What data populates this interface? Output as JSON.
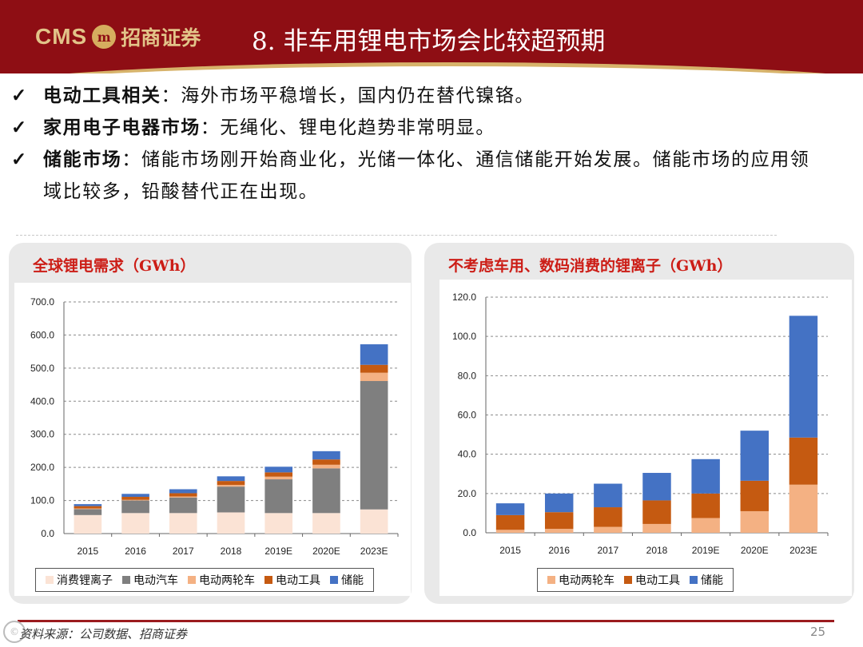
{
  "header": {
    "logo_text": "CMS",
    "logo_seal": "m",
    "logo_cn": "招商证券",
    "title": "8.  非车用锂电市场会比较超预期"
  },
  "bullets": [
    {
      "check": "✓",
      "bold": "电动工具相关",
      "text": "：海外市场平稳增长，国内仍在替代镍铬。"
    },
    {
      "check": "✓",
      "bold": "家用电子电器市场",
      "text": "：无绳化、锂电化趋势非常明显。"
    },
    {
      "check": "✓",
      "bold": "储能市场",
      "text": "：储能市场刚开始商业化，光储一体化、通信储能开始发展。储能市场的应用领域比较多，铅酸替代正在出现。"
    }
  ],
  "panels": {
    "left_title": "全球锂电需求（GWh）",
    "right_title": "不考虑车用、数码消费的锂离子（GWh）"
  },
  "colors": {
    "consumer": "#fbe3d5",
    "ev": "#7f7f7f",
    "two_wheeler": "#f4b183",
    "tools": "#c55a11",
    "storage": "#4472c4",
    "brand": "#8e0e14"
  },
  "chart_data": [
    {
      "type": "bar",
      "stacked": true,
      "categories": [
        "2015",
        "2016",
        "2017",
        "2018",
        "2019E",
        "2020E",
        "2023E"
      ],
      "ylim": [
        0,
        700
      ],
      "yticks": [
        "0.0",
        "100.0",
        "200.0",
        "300.0",
        "400.0",
        "500.0",
        "600.0",
        "700.0"
      ],
      "grid": true,
      "legend_position": "bottom",
      "series": [
        {
          "name": "消费锂离子",
          "color": "#fbe3d5",
          "values": [
            56,
            62,
            62,
            64,
            62,
            62,
            73
          ]
        },
        {
          "name": "电动汽车",
          "color": "#7f7f7f",
          "values": [
            18,
            38,
            47,
            78,
            102,
            135,
            388
          ]
        },
        {
          "name": "电动两轮车",
          "color": "#f4b183",
          "values": [
            2,
            2,
            3,
            5,
            8,
            11,
            25
          ]
        },
        {
          "name": "电动工具",
          "color": "#c55a11",
          "values": [
            7,
            9,
            10,
            12,
            13,
            16,
            24
          ]
        },
        {
          "name": "储能",
          "color": "#4472c4",
          "values": [
            6,
            9,
            12,
            14,
            17,
            25,
            62
          ]
        }
      ]
    },
    {
      "type": "bar",
      "stacked": true,
      "categories": [
        "2015",
        "2016",
        "2017",
        "2018",
        "2019E",
        "2020E",
        "2023E"
      ],
      "ylim": [
        0,
        120
      ],
      "yticks": [
        "0.0",
        "20.0",
        "40.0",
        "60.0",
        "80.0",
        "100.0",
        "120.0"
      ],
      "grid": true,
      "legend_position": "bottom",
      "series": [
        {
          "name": "电动两轮车",
          "color": "#f4b183",
          "values": [
            1.5,
            2.0,
            3.0,
            4.5,
            7.5,
            11.0,
            24.5
          ]
        },
        {
          "name": "电动工具",
          "color": "#c55a11",
          "values": [
            7.5,
            8.5,
            10.0,
            12.0,
            12.5,
            15.5,
            24.0
          ]
        },
        {
          "name": "储能",
          "color": "#4472c4",
          "values": [
            6.0,
            9.5,
            12.0,
            14.0,
            17.5,
            25.5,
            62.0
          ]
        }
      ]
    }
  ],
  "footer": {
    "source": "资料来源：公司数据、招商证券",
    "page": "25",
    "watermark": "©"
  }
}
